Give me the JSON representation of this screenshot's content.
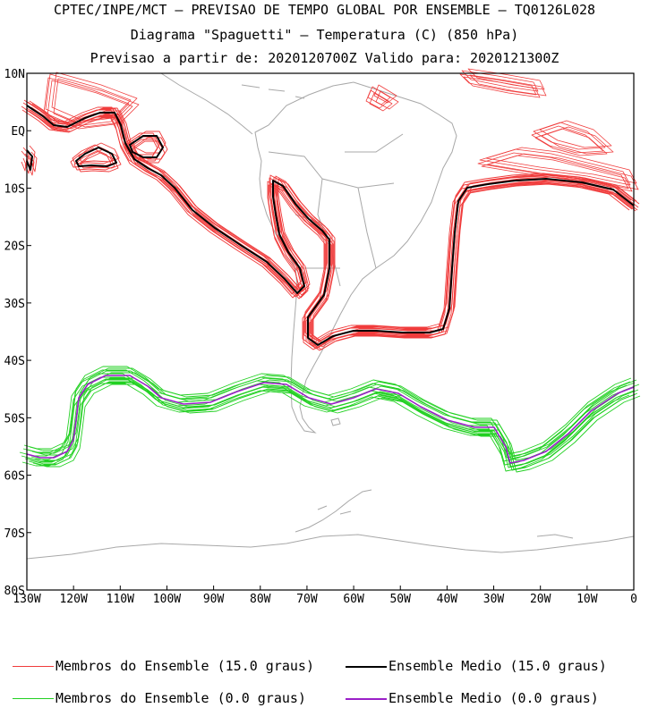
{
  "header": {
    "line1": "CPTEC/INPE/MCT — PREVISAO DE TEMPO GLOBAL POR ENSEMBLE — TQ0126L028",
    "line2": "Diagrama \"Spaguetti\" — Temperatura (C) (850 hPa)",
    "line3": "Previsao a partir de: 2020120700Z  Valido para: 2020121300Z"
  },
  "map": {
    "lat_labels": [
      "10N",
      "EQ",
      "10S",
      "20S",
      "30S",
      "40S",
      "50S",
      "60S",
      "70S",
      "80S"
    ],
    "lon_labels": [
      "130W",
      "120W",
      "110W",
      "100W",
      "90W",
      "80W",
      "70W",
      "60W",
      "50W",
      "40W",
      "30W",
      "20W",
      "10W",
      "0"
    ],
    "lon_range": [
      -130,
      0
    ],
    "lat_range": [
      10,
      -80
    ]
  },
  "legend": {
    "items": [
      {
        "label": "Membros do Ensemble (15.0 graus)",
        "color": "#f03c3c"
      },
      {
        "label": "Ensemble Medio (15.0 graus)",
        "color": "#000000"
      },
      {
        "label": "Membros do Ensemble (0.0 graus)",
        "color": "#22d022"
      },
      {
        "label": "Ensemble Medio (0.0 graus)",
        "color": "#9a1fc8"
      }
    ]
  }
}
